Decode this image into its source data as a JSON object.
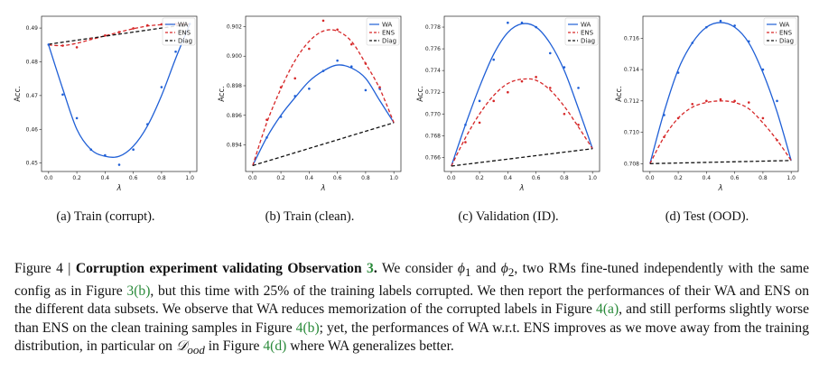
{
  "chart_data": [
    {
      "type": "line",
      "caption": "(a) Train (corrupt).",
      "xlabel": "λ",
      "ylabel": "Acc.",
      "xlim": [
        -0.05,
        1.05
      ],
      "ylim": [
        0.4475,
        0.4935
      ],
      "xticks": [
        "0.0",
        "0.2",
        "0.4",
        "0.6",
        "0.8",
        "1.0"
      ],
      "yticks": [
        0.45,
        0.46,
        0.47,
        0.48,
        0.49
      ],
      "ytick_labels": [
        "0.45",
        "0.46",
        "0.47",
        "0.48",
        "0.49"
      ],
      "legend": [
        "WA",
        "ENS",
        "Diag"
      ],
      "series": [
        {
          "name": "WA",
          "color": "#1f5fd6",
          "style": "solid",
          "x": [
            0,
            0.1,
            0.2,
            0.3,
            0.4,
            0.5,
            0.6,
            0.7,
            0.8,
            0.9,
            1.0
          ],
          "values": [
            0.485,
            0.472,
            0.46,
            0.454,
            0.452,
            0.452,
            0.455,
            0.461,
            0.47,
            0.481,
            0.4912
          ]
        },
        {
          "name": "ENS",
          "color": "#d62728",
          "style": "dashed",
          "x": [
            0,
            0.1,
            0.2,
            0.3,
            0.4,
            0.5,
            0.6,
            0.7,
            0.8,
            0.9,
            1.0
          ],
          "values": [
            0.485,
            0.4848,
            0.4855,
            0.4866,
            0.4877,
            0.4888,
            0.4898,
            0.4906,
            0.491,
            0.4912,
            0.4912
          ]
        },
        {
          "name": "Diag",
          "color": "#111111",
          "style": "dashed",
          "x": [
            0,
            1.0
          ],
          "values": [
            0.4852,
            0.4912
          ]
        }
      ],
      "points": [
        {
          "series": "WA",
          "x": [
            0,
            0.1,
            0.2,
            0.3,
            0.4,
            0.5,
            0.6,
            0.7,
            0.8,
            0.9,
            1.0
          ],
          "values": [
            0.4851,
            0.4703,
            0.4633,
            0.454,
            0.4523,
            0.4495,
            0.454,
            0.4615,
            0.4725,
            0.483,
            0.4912
          ]
        },
        {
          "series": "ENS",
          "x": [
            0.1,
            0.2,
            0.3,
            0.4,
            0.5,
            0.6,
            0.7,
            0.8,
            0.9
          ],
          "values": [
            0.4848,
            0.4843,
            0.4868,
            0.4878,
            0.4888,
            0.4899,
            0.4908,
            0.4911,
            0.4912
          ]
        }
      ]
    },
    {
      "type": "line",
      "caption": "(b) Train (clean).",
      "xlabel": "λ",
      "ylabel": "Acc.",
      "xlim": [
        -0.05,
        1.05
      ],
      "ylim": [
        0.8922,
        0.9027
      ],
      "xticks": [
        "0.0",
        "0.2",
        "0.4",
        "0.6",
        "0.8",
        "1.0"
      ],
      "yticks": [
        0.894,
        0.896,
        0.898,
        0.9,
        0.902
      ],
      "ytick_labels": [
        "0.894",
        "0.896",
        "0.898",
        "0.900",
        "0.902"
      ],
      "legend": [
        "WA",
        "ENS",
        "Diag"
      ],
      "series": [
        {
          "name": "WA",
          "color": "#1f5fd6",
          "style": "solid",
          "x": [
            0,
            0.1,
            0.2,
            0.3,
            0.4,
            0.5,
            0.6,
            0.7,
            0.8,
            0.9,
            1.0
          ],
          "values": [
            0.8926,
            0.8945,
            0.896,
            0.8972,
            0.8983,
            0.899,
            0.8994,
            0.8992,
            0.8985,
            0.897,
            0.8955
          ]
        },
        {
          "name": "ENS",
          "color": "#d62728",
          "style": "dashed",
          "x": [
            0,
            0.1,
            0.2,
            0.3,
            0.4,
            0.5,
            0.6,
            0.7,
            0.8,
            0.9,
            1.0
          ],
          "values": [
            0.8926,
            0.8955,
            0.8978,
            0.8997,
            0.901,
            0.9017,
            0.9017,
            0.901,
            0.8995,
            0.8978,
            0.8955
          ]
        },
        {
          "name": "Diag",
          "color": "#111111",
          "style": "dashed",
          "x": [
            0,
            1.0
          ],
          "values": [
            0.8926,
            0.8955
          ]
        }
      ],
      "points": [
        {
          "series": "WA",
          "x": [
            0.1,
            0.2,
            0.3,
            0.4,
            0.5,
            0.6,
            0.7,
            0.8,
            0.9
          ],
          "values": [
            0.8945,
            0.8959,
            0.8973,
            0.8978,
            0.899,
            0.8997,
            0.8993,
            0.8977,
            0.8978
          ]
        },
        {
          "series": "ENS",
          "x": [
            0.1,
            0.2,
            0.3,
            0.4,
            0.5,
            0.6,
            0.7,
            0.8,
            0.9
          ],
          "values": [
            0.8957,
            0.8979,
            0.8985,
            0.9005,
            0.9024,
            0.9018,
            0.9008,
            0.8995,
            0.8979
          ]
        }
      ]
    },
    {
      "type": "line",
      "caption": "(c) Validation (ID).",
      "xlabel": "λ",
      "ylabel": "Acc.",
      "xlim": [
        -0.05,
        1.05
      ],
      "ylim": [
        0.7647,
        0.779
      ],
      "xticks": [
        "0.0",
        "0.2",
        "0.4",
        "0.6",
        "0.8",
        "1.0"
      ],
      "yticks": [
        0.766,
        0.768,
        0.77,
        0.772,
        0.774,
        0.776,
        0.778
      ],
      "ytick_labels": [
        "0.766",
        "0.768",
        "0.770",
        "0.772",
        "0.774",
        "0.776",
        "0.778"
      ],
      "legend": [
        "WA",
        "ENS",
        "Diag"
      ],
      "series": [
        {
          "name": "WA",
          "color": "#1f5fd6",
          "style": "solid",
          "x": [
            0,
            0.1,
            0.2,
            0.3,
            0.4,
            0.5,
            0.6,
            0.7,
            0.8,
            0.9,
            1.0
          ],
          "values": [
            0.7652,
            0.769,
            0.7725,
            0.7755,
            0.7775,
            0.7783,
            0.778,
            0.7765,
            0.774,
            0.7705,
            0.7668
          ]
        },
        {
          "name": "ENS",
          "color": "#d62728",
          "style": "dashed",
          "x": [
            0,
            0.1,
            0.2,
            0.3,
            0.4,
            0.5,
            0.6,
            0.7,
            0.8,
            0.9,
            1.0
          ],
          "values": [
            0.7652,
            0.7678,
            0.77,
            0.7717,
            0.7728,
            0.7732,
            0.7731,
            0.7722,
            0.7707,
            0.7688,
            0.7668
          ]
        },
        {
          "name": "Diag",
          "color": "#111111",
          "style": "dashed",
          "x": [
            0,
            1.0
          ],
          "values": [
            0.7652,
            0.7668
          ]
        }
      ],
      "points": [
        {
          "series": "WA",
          "x": [
            0.1,
            0.2,
            0.3,
            0.4,
            0.5,
            0.6,
            0.7,
            0.8,
            0.9
          ],
          "values": [
            0.769,
            0.7712,
            0.775,
            0.7784,
            0.7784,
            0.778,
            0.7756,
            0.7743,
            0.7724
          ]
        },
        {
          "series": "ENS",
          "x": [
            0.1,
            0.2,
            0.3,
            0.4,
            0.5,
            0.6,
            0.7,
            0.8,
            0.9
          ],
          "values": [
            0.7674,
            0.7692,
            0.7712,
            0.772,
            0.773,
            0.7734,
            0.7724,
            0.77,
            0.769
          ]
        }
      ]
    },
    {
      "type": "line",
      "caption": "(d) Test (OOD).",
      "xlabel": "λ",
      "ylabel": "Acc.",
      "xlim": [
        -0.05,
        1.05
      ],
      "ylim": [
        0.7075,
        0.7174
      ],
      "xticks": [
        "0.0",
        "0.2",
        "0.4",
        "0.6",
        "0.8",
        "1.0"
      ],
      "yticks": [
        0.708,
        0.71,
        0.712,
        0.714,
        0.716
      ],
      "ytick_labels": [
        "0.708",
        "0.710",
        "0.712",
        "0.714",
        "0.716"
      ],
      "legend": [
        "WA",
        "ENS",
        "Diag"
      ],
      "series": [
        {
          "name": "WA",
          "color": "#1f5fd6",
          "style": "solid",
          "x": [
            0,
            0.1,
            0.2,
            0.3,
            0.4,
            0.5,
            0.6,
            0.7,
            0.8,
            0.9,
            1.0
          ],
          "values": [
            0.708,
            0.7113,
            0.714,
            0.7157,
            0.7167,
            0.717,
            0.7167,
            0.7157,
            0.7138,
            0.7113,
            0.7082
          ]
        },
        {
          "name": "ENS",
          "color": "#d62728",
          "style": "dashed",
          "x": [
            0,
            0.1,
            0.2,
            0.3,
            0.4,
            0.5,
            0.6,
            0.7,
            0.8,
            0.9,
            1.0
          ],
          "values": [
            0.708,
            0.7097,
            0.7109,
            0.7116,
            0.7119,
            0.712,
            0.7119,
            0.7115,
            0.7106,
            0.7095,
            0.7082
          ]
        },
        {
          "name": "Diag",
          "color": "#111111",
          "style": "dashed",
          "x": [
            0,
            1.0
          ],
          "values": [
            0.708,
            0.7082
          ]
        }
      ],
      "points": [
        {
          "series": "WA",
          "x": [
            0.1,
            0.2,
            0.3,
            0.4,
            0.5,
            0.6,
            0.7,
            0.8,
            0.9
          ],
          "values": [
            0.7111,
            0.7138,
            0.7157,
            0.7167,
            0.7171,
            0.7168,
            0.7158,
            0.714,
            0.712
          ]
        },
        {
          "series": "ENS",
          "x": [
            0.1,
            0.2,
            0.3,
            0.4,
            0.5,
            0.6,
            0.7,
            0.8,
            0.9
          ],
          "values": [
            0.7097,
            0.7109,
            0.7118,
            0.712,
            0.7121,
            0.712,
            0.7119,
            0.7109,
            0.7095
          ]
        }
      ]
    }
  ],
  "caption": {
    "label": "Figure 4 | ",
    "title": "Corruption experiment validating Observation ",
    "title_ref": "3",
    "title_end": ".",
    "t1": " We consider ",
    "phi1": "ϕ",
    "sub1": "1",
    "t2": " and ",
    "phi2": "ϕ",
    "sub2": "2",
    "t3": ", two RMs fine-tuned independently with the same config as in Figure ",
    "ref_3b": "3(b)",
    "t4": ", but this time with 25% of the training labels corrupted. We then report the performances of their WA and ENS on the different data subsets. We observe that WA reduces memorization of the corrupted labels in Figure ",
    "ref_4a": "4(a)",
    "t5": ", and still performs slightly worse than ENS on the clean training samples in Figure ",
    "ref_4b": "4(b)",
    "t6": "; yet, the performances of WA w.r.t. ENS improves as we move away from the training distribution, in particular on ",
    "dood": "𝒟",
    "dood_sub": "ood",
    "t7": " in Figure ",
    "ref_4d": "4(d)",
    "t8": " where WA generalizes better."
  }
}
